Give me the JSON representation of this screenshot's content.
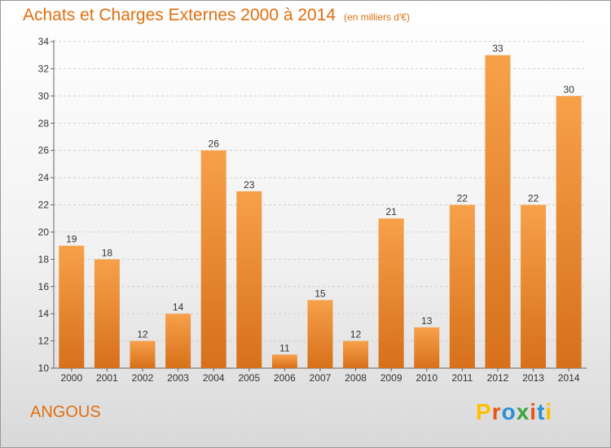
{
  "title": "Achats et Charges Externes 2000 à 2014",
  "unit": "(en milliers d'€)",
  "commune": "ANGOUS",
  "logo": {
    "text": "Proxiti",
    "letter_colors": [
      "#ffbf00",
      "#e8541a",
      "#2a8fd6",
      "#3ea33e",
      "#e8541a",
      "#2a8fd6"
    ]
  },
  "chart_data": {
    "type": "bar",
    "categories": [
      "2000",
      "2001",
      "2002",
      "2003",
      "2004",
      "2005",
      "2006",
      "2007",
      "2008",
      "2009",
      "2010",
      "2011",
      "2012",
      "2013",
      "2014"
    ],
    "values": [
      19,
      18,
      12,
      14,
      26,
      23,
      11,
      15,
      12,
      21,
      13,
      22,
      33,
      22,
      30
    ],
    "ylim": [
      10,
      34
    ],
    "yticks": [
      10,
      12,
      14,
      16,
      18,
      20,
      22,
      24,
      26,
      28,
      30,
      32,
      34
    ],
    "grid": true,
    "bar_color_top": "#f7a04a",
    "bar_color_bottom": "#d7701a"
  }
}
